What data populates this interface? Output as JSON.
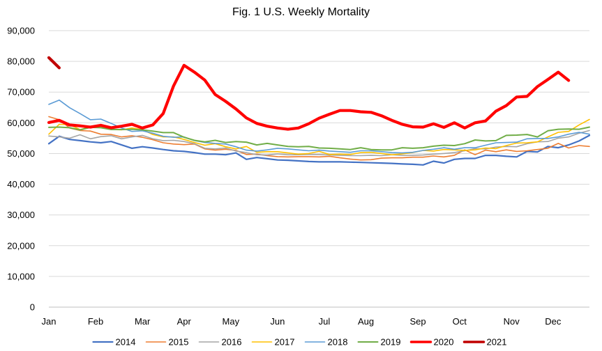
{
  "chart_data": {
    "type": "line",
    "title": "Fig. 1 U.S. Weekly Mortality",
    "xlabel": "",
    "ylabel": "",
    "ylim": [
      0,
      90000
    ],
    "y_ticks": [
      0,
      10000,
      20000,
      30000,
      40000,
      50000,
      60000,
      70000,
      80000,
      90000
    ],
    "y_tick_labels": [
      "0",
      "10,000",
      "20,000",
      "30,000",
      "40,000",
      "50,000",
      "60,000",
      "70,000",
      "80,000",
      "90,000"
    ],
    "x_range_weeks": [
      1,
      53
    ],
    "x_ticks": [
      {
        "label": "Jan",
        "week": 1
      },
      {
        "label": "Feb",
        "week": 5.5
      },
      {
        "label": "Mar",
        "week": 10
      },
      {
        "label": "Apr",
        "week": 14
      },
      {
        "label": "May",
        "week": 18.5
      },
      {
        "label": "Jun",
        "week": 23
      },
      {
        "label": "Jul",
        "week": 27.5
      },
      {
        "label": "Aug",
        "week": 31.5
      },
      {
        "label": "Sep",
        "week": 36.5
      },
      {
        "label": "Oct",
        "week": 40.5
      },
      {
        "label": "Nov",
        "week": 45.5
      },
      {
        "label": "Dec",
        "week": 49.5
      }
    ],
    "grid": true,
    "legend_position": "bottom",
    "series": [
      {
        "name": "2014",
        "color": "#4472c4",
        "width": 2.2,
        "start_week": 1,
        "values": [
          53200,
          55600,
          54600,
          54200,
          53800,
          53500,
          53900,
          52800,
          51700,
          52200,
          51800,
          51300,
          50900,
          50700,
          50300,
          49800,
          49800,
          49600,
          50200,
          48100,
          48700,
          48300,
          47900,
          47800,
          47600,
          47400,
          47300,
          47300,
          47300,
          47200,
          47100,
          47000,
          46900,
          46800,
          46600,
          46500,
          46300,
          47500,
          46900,
          48100,
          48400,
          48400,
          49400,
          49400,
          49100,
          48900,
          50700,
          50500,
          52300,
          51900,
          52800,
          54100,
          55900
        ]
      },
      {
        "name": "2015",
        "color": "#ed7d31",
        "width": 1.6,
        "start_week": 1,
        "values": [
          62000,
          61000,
          58300,
          57500,
          57300,
          56300,
          56200,
          55400,
          55800,
          55300,
          54500,
          53500,
          53100,
          52900,
          53100,
          51500,
          51100,
          51400,
          51000,
          49700,
          49800,
          49300,
          49000,
          48900,
          49000,
          49000,
          48900,
          49100,
          48600,
          48200,
          47900,
          48000,
          48500,
          48600,
          48600,
          48800,
          48800,
          49200,
          48900,
          49400,
          51200,
          49600,
          51100,
          50600,
          51200,
          50700,
          50900,
          51300,
          51700,
          53300,
          51800,
          52600,
          52300
        ]
      },
      {
        "name": "2016",
        "color": "#a5a5a5",
        "width": 1.6,
        "start_week": 1,
        "values": [
          55700,
          55400,
          55000,
          56100,
          54800,
          55500,
          55800,
          54800,
          55400,
          55900,
          54800,
          54200,
          54300,
          53900,
          53200,
          51700,
          51500,
          51800,
          50800,
          50300,
          49600,
          49500,
          49900,
          49600,
          49600,
          49700,
          49700,
          49500,
          49400,
          49300,
          49300,
          49400,
          49300,
          49600,
          49400,
          49400,
          49500,
          49800,
          50000,
          50300,
          50900,
          51600,
          51500,
          52100,
          52300,
          52200,
          53200,
          53800,
          53900,
          55000,
          55400,
          56600,
          57500
        ]
      },
      {
        "name": "2017",
        "color": "#ffc000",
        "width": 1.6,
        "start_week": 1,
        "values": [
          56300,
          59500,
          59400,
          57800,
          58600,
          58700,
          57800,
          57700,
          58300,
          57800,
          56200,
          55400,
          55400,
          54600,
          53600,
          52700,
          53200,
          52200,
          51500,
          52300,
          50400,
          50600,
          50600,
          50200,
          49800,
          50000,
          50700,
          49700,
          49800,
          49700,
          50300,
          50400,
          50000,
          49600,
          49900,
          50300,
          51000,
          50800,
          51300,
          51200,
          51000,
          51200,
          51800,
          51600,
          52600,
          53400,
          53500,
          53800,
          55400,
          56900,
          57200,
          59300,
          61100
        ]
      },
      {
        "name": "2018",
        "color": "#5b9bd5",
        "width": 1.6,
        "start_week": 1,
        "values": [
          66000,
          67400,
          64900,
          63000,
          61000,
          61200,
          59800,
          58300,
          57200,
          57400,
          56600,
          55600,
          55300,
          55400,
          54200,
          53600,
          53300,
          53100,
          52200,
          51100,
          50800,
          51200,
          51700,
          51500,
          51200,
          50900,
          51100,
          50800,
          50600,
          50400,
          50900,
          50900,
          50600,
          50300,
          50200,
          50400,
          51000,
          51400,
          51900,
          51400,
          51900,
          51900,
          52700,
          53500,
          53600,
          53700,
          54800,
          54900,
          54900,
          55400,
          56300,
          56900,
          56300
        ]
      },
      {
        "name": "2019",
        "color": "#70ad47",
        "width": 2.0,
        "start_week": 1,
        "values": [
          58500,
          58600,
          58400,
          57700,
          58500,
          58400,
          57800,
          57800,
          57900,
          57700,
          57300,
          56800,
          56800,
          55300,
          54300,
          53800,
          54300,
          53600,
          53900,
          53700,
          52800,
          53300,
          52800,
          52300,
          52200,
          52300,
          51800,
          51700,
          51500,
          51300,
          51900,
          51300,
          51200,
          51200,
          51900,
          51700,
          51900,
          52400,
          52700,
          52600,
          53200,
          54400,
          54100,
          54200,
          55900,
          56000,
          56200,
          55400,
          57400,
          57900,
          58000,
          57900,
          58600
        ]
      },
      {
        "name": "2020",
        "color": "#ff0000",
        "width": 4.2,
        "start_week": 1,
        "values": [
          60100,
          60800,
          59300,
          59000,
          58600,
          59200,
          58400,
          58900,
          59500,
          58300,
          59300,
          63000,
          72000,
          78700,
          76500,
          73900,
          69200,
          67000,
          64500,
          61600,
          59800,
          58900,
          58300,
          57900,
          58300,
          59700,
          61500,
          62800,
          64000,
          64000,
          63600,
          63400,
          62300,
          60800,
          59500,
          58700,
          58600,
          59700,
          58500,
          60000,
          58300,
          60000,
          60600,
          63800,
          65600,
          68400,
          68600,
          71800,
          74100,
          76500,
          73800
        ]
      },
      {
        "name": "2021",
        "color": "#c00000",
        "width": 4.2,
        "start_week": 1,
        "values": [
          81200,
          77900
        ]
      }
    ]
  }
}
